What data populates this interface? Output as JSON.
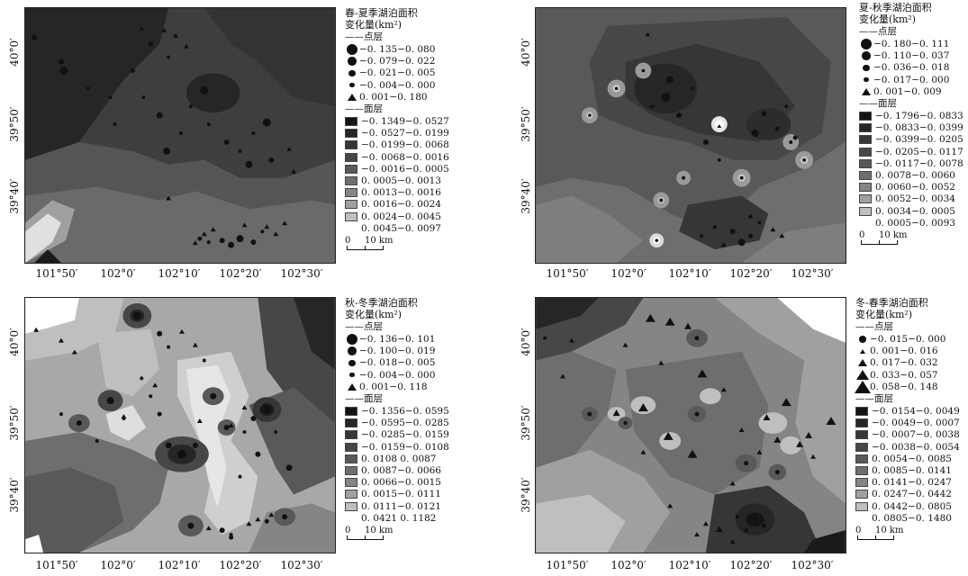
{
  "x_ticks": [
    "101°50′",
    "102°0′",
    "102°10′",
    "102°20′",
    "102°30′"
  ],
  "y_ticks": [
    "40°0′",
    "39°50′",
    "39°40′"
  ],
  "scale": {
    "zero": "0",
    "label": "10 km"
  },
  "point_label": "点层",
  "surface_label": "面层",
  "panels": [
    {
      "id": "spring-summer",
      "title": [
        "春-夏季湖泊面积",
        "变化量(km²)"
      ],
      "points": [
        {
          "symbol": "dot",
          "size": 5,
          "label": "−0. 135−0. 080"
        },
        {
          "symbol": "dot",
          "size": 4,
          "label": "−0. 079−0. 022"
        },
        {
          "symbol": "dot",
          "size": 3,
          "label": "−0. 021−0. 005"
        },
        {
          "symbol": "dot",
          "size": 2,
          "label": "−0. 004−0. 000"
        },
        {
          "symbol": "tri",
          "size": 3,
          "label": "0. 001−0. 180"
        }
      ],
      "classes": [
        {
          "color": "#141414",
          "label": "−0. 1349−0. 0527"
        },
        {
          "color": "#262626",
          "label": "−0. 0527−0. 0199"
        },
        {
          "color": "#363636",
          "label": "−0. 0199−0. 0068"
        },
        {
          "color": "#474747",
          "label": "−0. 0068−0. 0016"
        },
        {
          "color": "#595959",
          "label": "−0. 0016−0. 0005"
        },
        {
          "color": "#6e6e6e",
          "label": "0. 0005−0. 0013"
        },
        {
          "color": "#858585",
          "label": "0. 0013−0. 0016"
        },
        {
          "color": "#a0a0a0",
          "label": "0. 0016−0. 0024"
        },
        {
          "color": "#bfbfbf",
          "label": "0. 0024−0. 0045"
        },
        {
          "color": "#ffffff",
          "label": "0. 0045−0. 0097",
          "nosw": true
        }
      ]
    },
    {
      "id": "summer-autumn",
      "title": [
        "夏-秋季湖泊面积",
        "变化量(km²)"
      ],
      "points": [
        {
          "symbol": "dot",
          "size": 5,
          "label": "−0. 180−0. 111"
        },
        {
          "symbol": "dot",
          "size": 4,
          "label": "−0. 110−0. 037"
        },
        {
          "symbol": "dot",
          "size": 3,
          "label": "−0. 036−0. 018"
        },
        {
          "symbol": "dot",
          "size": 2,
          "label": "−0. 017−0. 000"
        },
        {
          "symbol": "tri",
          "size": 3,
          "label": "0. 001−0. 009"
        }
      ],
      "classes": [
        {
          "color": "#141414",
          "label": "−0. 1796−0. 0833"
        },
        {
          "color": "#262626",
          "label": "−0. 0833−0. 0399"
        },
        {
          "color": "#363636",
          "label": "−0. 0399−0. 0205"
        },
        {
          "color": "#474747",
          "label": "−0. 0205−0. 0117"
        },
        {
          "color": "#595959",
          "label": "−0. 0117−0. 0078"
        },
        {
          "color": "#6e6e6e",
          "label": "0. 0078−0. 0060"
        },
        {
          "color": "#858585",
          "label": "0. 0060−0. 0052"
        },
        {
          "color": "#a0a0a0",
          "label": "0. 0052−0. 0034"
        },
        {
          "color": "#bfbfbf",
          "label": "0. 0034−0. 0005"
        },
        {
          "color": "#ffffff",
          "label": "0. 0005−0. 0093",
          "nosw": true
        }
      ]
    },
    {
      "id": "autumn-winter",
      "title": [
        "秋-冬季湖泊面积",
        "变化量(km²)"
      ],
      "points": [
        {
          "symbol": "dot",
          "size": 5,
          "label": "−0. 136−0. 101"
        },
        {
          "symbol": "dot",
          "size": 4,
          "label": "−0. 100−0. 019"
        },
        {
          "symbol": "dot",
          "size": 3,
          "label": "−0. 018−0. 005"
        },
        {
          "symbol": "dot",
          "size": 2,
          "label": "−0. 004−0. 000"
        },
        {
          "symbol": "tri",
          "size": 3,
          "label": "0. 001−0. 118"
        }
      ],
      "classes": [
        {
          "color": "#141414",
          "label": "−0. 1356−0. 0595"
        },
        {
          "color": "#262626",
          "label": "−0. 0595−0. 0285"
        },
        {
          "color": "#363636",
          "label": "−0. 0285−0. 0159"
        },
        {
          "color": "#474747",
          "label": "−0. 0159−0. 0108"
        },
        {
          "color": "#595959",
          "label": "0. 0108 0. 0087"
        },
        {
          "color": "#6e6e6e",
          "label": "0. 0087−0. 0066"
        },
        {
          "color": "#858585",
          "label": "0. 0066−0. 0015"
        },
        {
          "color": "#a0a0a0",
          "label": "0. 0015−0. 0111"
        },
        {
          "color": "#bfbfbf",
          "label": "0. 0111−0. 0121"
        },
        {
          "color": "#ffffff",
          "label": "0. 0421 0. 1182",
          "nosw": true
        }
      ]
    },
    {
      "id": "winter-spring",
      "title": [
        "冬-春季湖泊面积",
        "变化量(km²)"
      ],
      "points": [
        {
          "symbol": "dot",
          "size": 3,
          "label": "−0. 015−0. 000"
        },
        {
          "symbol": "tri",
          "size": 2,
          "label": "0. 001−0. 016"
        },
        {
          "symbol": "tri",
          "size": 3,
          "label": "0. 017−0. 032"
        },
        {
          "symbol": "tri",
          "size": 4,
          "label": "0. 033−0. 057"
        },
        {
          "symbol": "tri",
          "size": 5,
          "label": "0. 058−0. 148"
        }
      ],
      "classes": [
        {
          "color": "#141414",
          "label": "−0. 0154−0. 0049"
        },
        {
          "color": "#262626",
          "label": "−0. 0049−0. 0007"
        },
        {
          "color": "#363636",
          "label": "−0. 0007−0. 0038"
        },
        {
          "color": "#474747",
          "label": "−0. 0038−0. 0054"
        },
        {
          "color": "#595959",
          "label": "0. 0054−0. 0085"
        },
        {
          "color": "#6e6e6e",
          "label": "0. 0085−0. 0141"
        },
        {
          "color": "#858585",
          "label": "0. 0141−0. 0247"
        },
        {
          "color": "#a0a0a0",
          "label": "0. 0247−0. 0442"
        },
        {
          "color": "#bfbfbf",
          "label": "0. 0442−0. 0805"
        },
        {
          "color": "#ffffff",
          "label": "0. 0805−0. 1480",
          "nosw": true
        }
      ]
    }
  ]
}
